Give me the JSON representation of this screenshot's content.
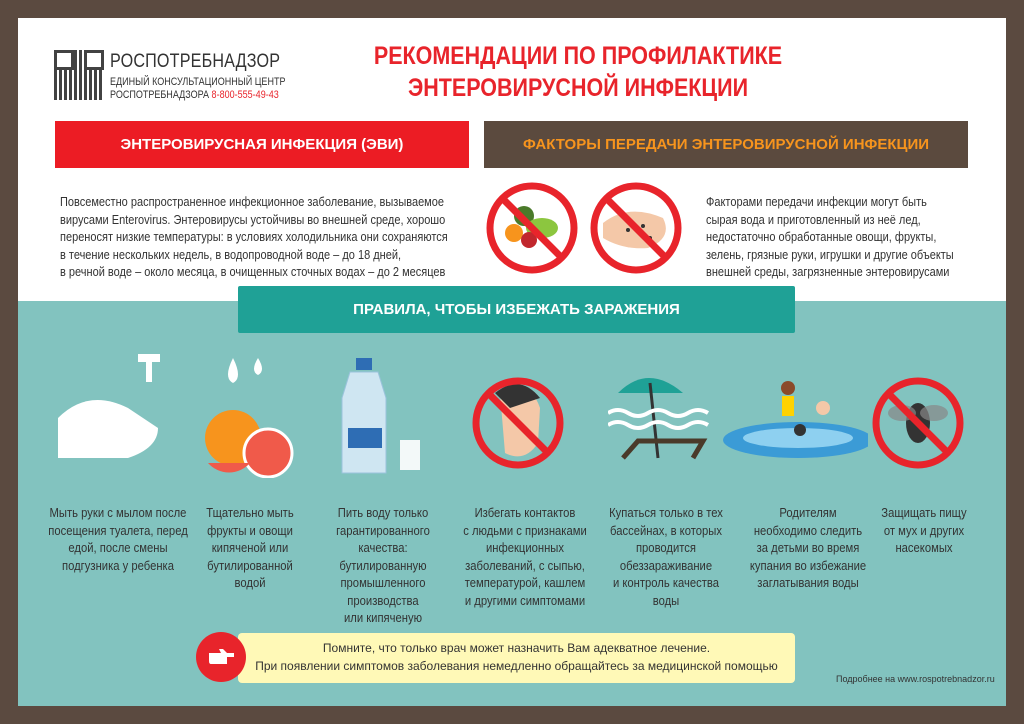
{
  "header": {
    "brand": "РОСПОТРЕБНАДЗОР",
    "center_line1": "ЕДИНЫЙ КОНСУЛЬТАЦИОННЫЙ ЦЕНТР",
    "center_line2": "РОСПОТРЕБНАДЗОРА",
    "phone": "8-800-555-49-43",
    "title_line1": "РЕКОМЕНДАЦИИ ПО ПРОФИЛАКТИКЕ",
    "title_line2": "ЭНТЕРОВИРУСНОЙ ИНФЕКЦИИ"
  },
  "sections": {
    "evi": {
      "heading": "ЭНТЕРОВИРУСНАЯ ИНФЕКЦИЯ (ЭВИ)",
      "text": "Повсеместно распространенное инфекционное заболевание, вызываемое\nвирусами Enterovirus. Энтеровирусы устойчивы во внешней среде, хорошо\nпереносят низкие температуры: в условиях холодильника они сохраняются\nв течение нескольких недель, в водопроводной воде – до 18 дней,\nв речной воде – около месяца, в очищенных сточных водах – до 2 месяцев"
    },
    "factors": {
      "heading": "ФАКТОРЫ ПЕРЕДАЧИ ЭНТЕРОВИРУСНОЙ ИНФЕКЦИИ",
      "text": "Факторами передачи инфекции могут быть\nсырая вода и приготовленный из неё лед,\nнедостаточно обработанные овощи, фрукты,\nзелень, грязные руки, игрушки и другие объекты\nвнешней среды, загрязненные энтеровирусами"
    }
  },
  "rules": {
    "heading": "ПРАВИЛА, ЧТОБЫ ИЗБЕЖАТЬ ЗАРАЖЕНИЯ",
    "items": [
      {
        "icon": "hand-washing-icon",
        "text": "Мыть руки с мылом после\nпосещения туалета, перед\nедой, после смены\nподгузника у ребенка"
      },
      {
        "icon": "fruit-icon",
        "text": "Тщательно мыть\nфрукты и овощи\nкипяченой или\nбутилированной\nводой"
      },
      {
        "icon": "water-bottle-icon",
        "text": "Пить воду только\nгарантированного\nкачества: бутилированную\nпромышленного\nпроизводства\nили кипяченую"
      },
      {
        "icon": "no-sick-contact-icon",
        "text": "Избегать контактов\nс людьми с признаками\nинфекционных\nзаболеваний, с сыпью,\nтемпературой, кашлем\nи другими симптомами"
      },
      {
        "icon": "pool-umbrella-icon",
        "text": "Купаться только в тех\nбассейнах, в которых\nпроводится\nобеззараживание\nи контроль качества\nводы"
      },
      {
        "icon": "children-bathing-icon",
        "text": "Родителям\nнеобходимо следить\nза детьми во время\nкупания во избежание\nзаглатывания воды"
      },
      {
        "icon": "no-fly-icon",
        "text": "Защищать пищу\nот мух и других\nнасекомых"
      }
    ]
  },
  "note": {
    "line1": "Помните, что только врач может назначить Вам адекватное лечение.",
    "line2": "При появлении симптомов заболевания немедленно обращайтесь за медицинской помощью"
  },
  "footer": {
    "site": "Подробнее на www.rospotrebnadzor.ru"
  },
  "colors": {
    "red": "#ec1c24",
    "brown": "#5b4a3e",
    "orange": "#f7941d",
    "teal": "#82c3bf",
    "banner": "#1fa196",
    "note": "#fff9b7"
  }
}
